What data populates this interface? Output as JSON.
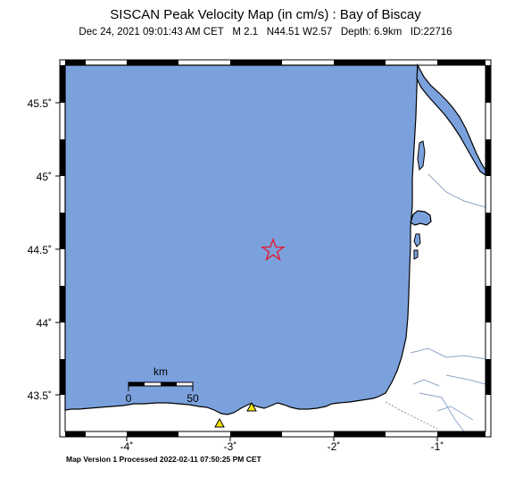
{
  "title": "SISCAN Peak Velocity Map (in cm/s) : Bay of Biscay",
  "subtitle": {
    "date": "Dec 24, 2021 09:01:43 AM CET",
    "magnitude": "M 2.1",
    "location": "N44.51 W2.57",
    "depth": "Depth: 6.9km",
    "id": "ID:22716"
  },
  "footer": "Map Version 1 Processed 2022-02-11 07:50:25 PM CET",
  "axes": {
    "lat_labels": [
      "45.5˚",
      "45˚",
      "44.5˚",
      "44˚",
      "43.5˚"
    ],
    "lon_labels": [
      "-4˚",
      "-3˚",
      "-2˚",
      "-1˚"
    ]
  },
  "scale_bar": {
    "unit": "km",
    "start": "0",
    "end": "50"
  },
  "colors": {
    "sea": "#7ba1dd",
    "land": "#ffffff",
    "epicenter": "#e8152a",
    "station": "#f2e600",
    "river": "#8fa5c8"
  },
  "markers": {
    "epicenter_icon": "star-icon",
    "station_icon": "triangle-icon"
  }
}
